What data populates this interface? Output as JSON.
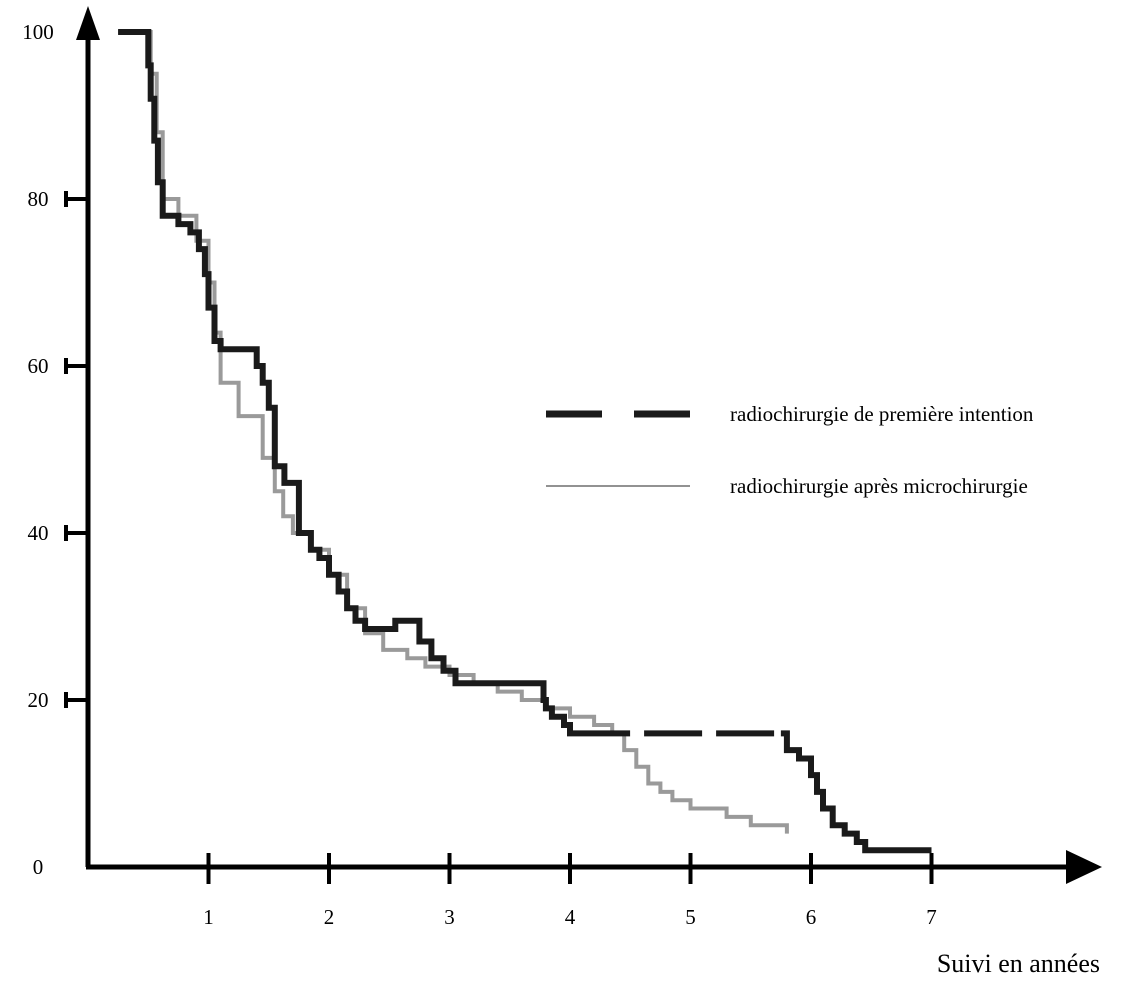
{
  "chart_data": {
    "type": "line",
    "title": "",
    "xlabel": "Suivi en années",
    "ylabel": "",
    "xlim": [
      0,
      8
    ],
    "ylim": [
      0,
      100
    ],
    "x_ticks": [
      "1",
      "2",
      "3",
      "4",
      "5",
      "6",
      "7"
    ],
    "y_ticks": [
      "0",
      "20",
      "40",
      "60",
      "80",
      "100"
    ],
    "grid": false,
    "legend_position": "right",
    "series": [
      {
        "name": "radiochirurgie de première intention",
        "style": "dashed",
        "color": "#1a1a1a",
        "x": [
          0.25,
          0.5,
          0.52,
          0.55,
          0.58,
          0.62,
          0.75,
          0.85,
          0.92,
          0.97,
          1.0,
          1.05,
          1.1,
          1.4,
          1.45,
          1.5,
          1.55,
          1.63,
          1.75,
          1.85,
          1.92,
          2.0,
          2.08,
          2.15,
          2.22,
          2.3,
          2.55,
          2.75,
          2.85,
          2.95,
          3.05,
          3.25,
          3.5,
          3.78,
          3.8,
          3.85,
          3.95,
          4.0,
          4.2,
          5.75,
          5.8,
          5.9,
          6.0,
          6.05,
          6.1,
          6.18,
          6.28,
          6.38,
          6.45,
          7.0
        ],
        "y": [
          100,
          96,
          92,
          87,
          82,
          78,
          77,
          76,
          74,
          71,
          67,
          63,
          62,
          60,
          58,
          55,
          48,
          46,
          40,
          38,
          37,
          35,
          33,
          31,
          29.5,
          28.5,
          29.5,
          27,
          25,
          23.5,
          22,
          22,
          22,
          20,
          19,
          18,
          17,
          16,
          16,
          16,
          14,
          13,
          11,
          9,
          7,
          5,
          4,
          3,
          2,
          2
        ]
      },
      {
        "name": "radiochirurgie après microchirurgie",
        "style": "solid",
        "color": "#9a9a9a",
        "x": [
          0.25,
          0.52,
          0.57,
          0.62,
          0.75,
          0.9,
          1.0,
          1.05,
          1.1,
          1.25,
          1.45,
          1.55,
          1.62,
          1.7,
          1.85,
          2.0,
          2.15,
          2.3,
          2.45,
          2.65,
          2.8,
          3.0,
          3.2,
          3.4,
          3.6,
          3.8,
          4.0,
          4.2,
          4.35,
          4.45,
          4.55,
          4.65,
          4.75,
          4.85,
          5.0,
          5.3,
          5.5,
          5.8
        ],
        "y": [
          100,
          95,
          88,
          80,
          78,
          75,
          70,
          64,
          58,
          54,
          49,
          45,
          42,
          40,
          38,
          35,
          31,
          28,
          26,
          25,
          24,
          23,
          22,
          21,
          20,
          19,
          18,
          17,
          16,
          14,
          12,
          10,
          9,
          8,
          7,
          6,
          5,
          4
        ]
      }
    ]
  }
}
